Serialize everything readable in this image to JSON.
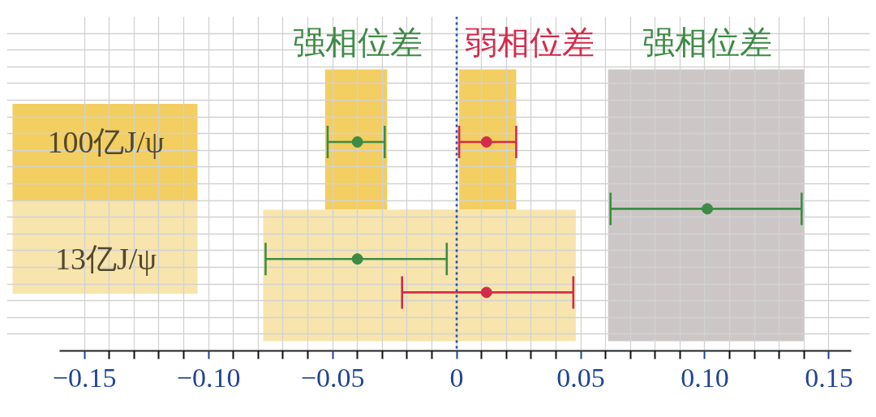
{
  "chart_data": {
    "type": "scatter",
    "orientation": "horizontal",
    "categories": [
      null,
      null,
      null,
      null,
      null,
      null,
      null,
      "100亿J/ψ",
      null,
      null,
      null,
      null,
      null,
      null,
      "13亿J/ψ",
      null,
      null,
      null,
      null,
      null
    ],
    "series": [
      {
        "name": "强相位差",
        "color": "#3d8b45",
        "values": [
          null,
          null,
          null,
          null,
          null,
          null,
          null,
          -0.04,
          null,
          null,
          null,
          0.101,
          null,
          null,
          -0.04,
          null,
          null,
          null,
          null,
          null
        ],
        "errors": [
          null,
          null,
          null,
          null,
          null,
          null,
          null,
          [
            -0.052,
            -0.029
          ],
          null,
          null,
          null,
          [
            0.062,
            0.139
          ],
          null,
          null,
          [
            -0.077,
            -0.004
          ],
          null,
          null,
          null,
          null,
          null
        ]
      },
      {
        "name": "弱相位差",
        "color": "#d22b4c",
        "values": [
          null,
          null,
          null,
          null,
          null,
          null,
          null,
          0.012,
          null,
          null,
          null,
          null,
          null,
          null,
          null,
          null,
          0.012,
          null,
          null,
          null
        ],
        "errors": [
          null,
          null,
          null,
          null,
          null,
          null,
          null,
          [
            0.001,
            0.024
          ],
          null,
          null,
          null,
          null,
          null,
          null,
          null,
          null,
          [
            -0.022,
            0.047
          ],
          null,
          null,
          null
        ]
      }
    ],
    "marker": "circle",
    "xlim": [
      -0.16,
      0.159
    ],
    "xticks": [
      {
        "value": -0.15,
        "label": "−0.15"
      },
      {
        "value": -0.14,
        "label": null
      },
      {
        "value": -0.13,
        "label": null
      },
      {
        "value": -0.12,
        "label": null
      },
      {
        "value": -0.11,
        "label": null
      },
      {
        "value": -0.1,
        "label": "−0.10"
      },
      {
        "value": -0.09,
        "label": null
      },
      {
        "value": -0.08,
        "label": null
      },
      {
        "value": -0.07,
        "label": null
      },
      {
        "value": -0.06,
        "label": null
      },
      {
        "value": -0.05,
        "label": "−0.05"
      },
      {
        "value": -0.04,
        "label": null
      },
      {
        "value": -0.03,
        "label": null
      },
      {
        "value": -0.02,
        "label": null
      },
      {
        "value": -0.01,
        "label": null
      },
      0,
      {
        "value": 0.01,
        "label": null
      },
      {
        "value": 0.02,
        "label": null
      },
      {
        "value": 0.03,
        "label": null
      },
      {
        "value": 0.04,
        "label": null
      },
      {
        "value": 0.05,
        "label": "0.05"
      },
      {
        "value": 0.06,
        "label": null
      },
      {
        "value": 0.07,
        "label": null
      },
      {
        "value": 0.08,
        "label": null
      },
      {
        "value": 0.09,
        "label": null
      },
      {
        "value": 0.1,
        "label": "0.10"
      },
      {
        "value": 0.11,
        "label": null
      },
      {
        "value": 0.12,
        "label": null
      },
      {
        "value": 0.13,
        "label": null
      },
      {
        "value": 0.14,
        "label": null
      },
      {
        "value": 0.15,
        "label": "0.15"
      }
    ],
    "grid": true,
    "ref_lines": [
      {
        "axis": "x",
        "value": 0,
        "color": "#2a4ea0",
        "line_style": "dotted"
      }
    ],
    "bands": [
      {
        "axis": "x",
        "from": -0.053,
        "to": -0.028,
        "color": "#f3ce60"
      },
      {
        "axis": "x",
        "from": 0.001,
        "to": 0.024,
        "color": "#f3ce60"
      },
      {
        "axis": "x",
        "from": 0.061,
        "to": 0.14,
        "color": "#cdc6c7"
      },
      {
        "axis": "x",
        "from": -0.078,
        "to": -0.003,
        "color": "#f7e5ad"
      },
      {
        "axis": "x",
        "from": -0.023,
        "to": 0.048,
        "color": "#f7e5ad"
      }
    ]
  }
}
